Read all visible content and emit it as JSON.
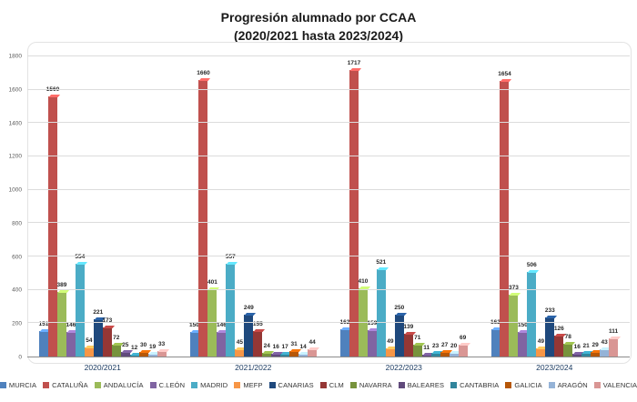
{
  "title": {
    "line1": "Progresión alumnado por CCAA",
    "line2": "(2020/2021 hasta 2023/2024)"
  },
  "chart_data": {
    "type": "bar",
    "title": "Progresión alumnado por CCAA (2020/2021 hasta 2023/2024)",
    "categories": [
      "2020/2021",
      "2021/2022",
      "2022/2023",
      "2023/2024"
    ],
    "series": [
      {
        "name": "MURCIA",
        "color": "#4f81bd",
        "values": [
          151,
          150,
          162,
          162
        ]
      },
      {
        "name": "CATALUÑA",
        "color": "#c0504d",
        "values": [
          1560,
          1660,
          1717,
          1654
        ]
      },
      {
        "name": "ANDALUCÍA",
        "color": "#9bbb59",
        "values": [
          389,
          401,
          410,
          373
        ]
      },
      {
        "name": "C.LEÓN",
        "color": "#8064a2",
        "values": [
          146,
          146,
          159,
          150
        ]
      },
      {
        "name": "MADRID",
        "color": "#4bacc6",
        "values": [
          554,
          557,
          521,
          506
        ]
      },
      {
        "name": "MEFP",
        "color": "#f79646",
        "values": [
          54,
          45,
          49,
          49
        ]
      },
      {
        "name": "CANARIAS",
        "color": "#1f497d",
        "values": [
          221,
          249,
          250,
          233
        ]
      },
      {
        "name": "CLM",
        "color": "#953735",
        "values": [
          173,
          155,
          139,
          126
        ]
      },
      {
        "name": "NAVARRA",
        "color": "#77933c",
        "values": [
          72,
          24,
          71,
          78
        ]
      },
      {
        "name": "BALEARES",
        "color": "#604a7b",
        "values": [
          25,
          16,
          11,
          16
        ]
      },
      {
        "name": "CANTABRIA",
        "color": "#31859c",
        "values": [
          12,
          17,
          23,
          21
        ]
      },
      {
        "name": "GALICIA",
        "color": "#b65708",
        "values": [
          30,
          31,
          27,
          29
        ]
      },
      {
        "name": "ARAGÓN",
        "color": "#95b3d7",
        "values": [
          19,
          14,
          20,
          43
        ]
      },
      {
        "name": "VALENCIA",
        "color": "#d99694",
        "values": [
          33,
          44,
          69,
          111
        ]
      }
    ],
    "xlabel": "",
    "ylabel": "",
    "ylim": [
      0,
      1800
    ],
    "ytick_step": 200,
    "grid": true,
    "legend_position": "bottom"
  }
}
